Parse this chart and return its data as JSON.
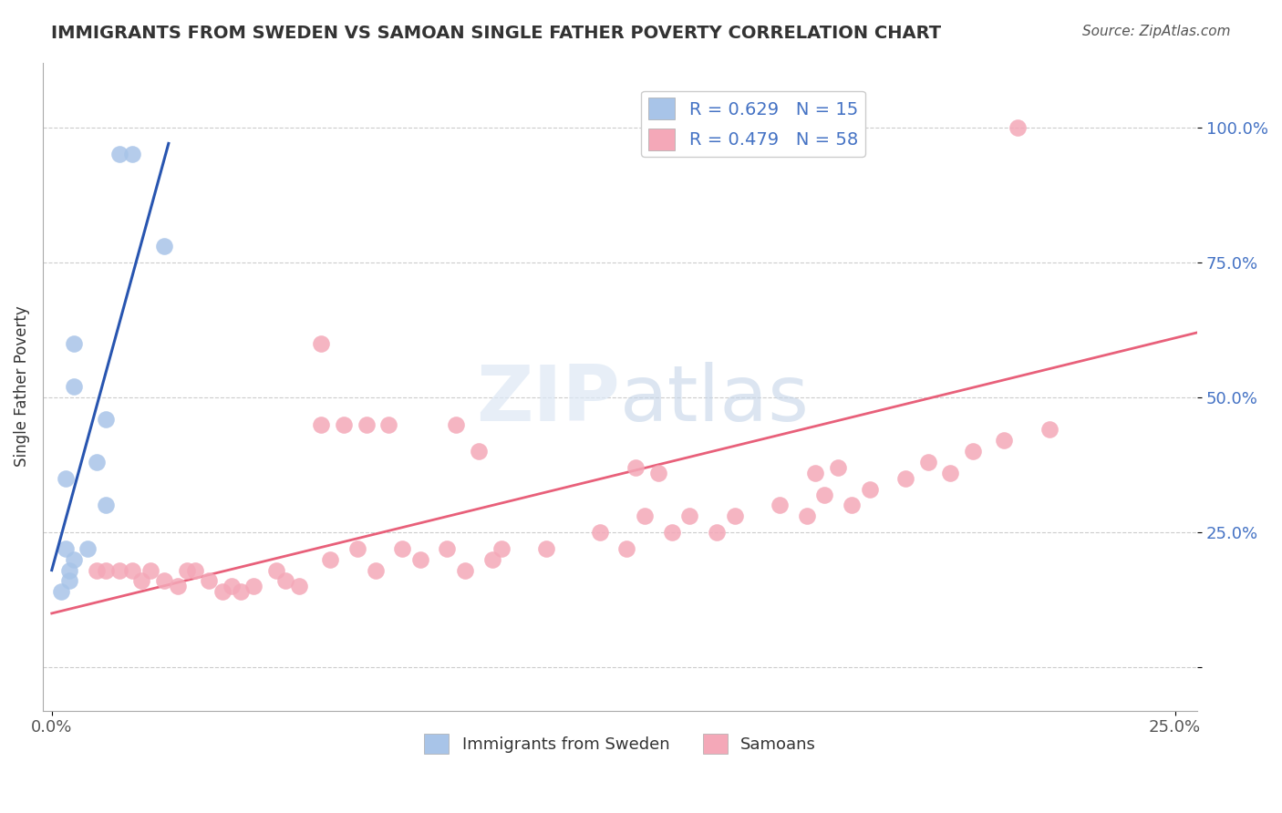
{
  "title": "IMMIGRANTS FROM SWEDEN VS SAMOAN SINGLE FATHER POVERTY CORRELATION CHART",
  "source": "Source: ZipAtlas.com",
  "ylabel": "Single Father Poverty",
  "legend_R_blue": "R = 0.629",
  "legend_N_blue": "N = 15",
  "legend_R_pink": "R = 0.479",
  "legend_N_pink": "N = 58",
  "legend_label_blue": "Immigrants from Sweden",
  "legend_label_pink": "Samoans",
  "blue_color": "#a8c4e8",
  "pink_color": "#f4a8b8",
  "blue_line_color": "#2855b0",
  "pink_line_color": "#e8607a",
  "title_color": "#333333",
  "tick_color": "#4472c4",
  "xlim": [
    -0.002,
    0.255
  ],
  "ylim": [
    -0.08,
    1.12
  ],
  "blue_line_x": [
    0.0,
    0.026
  ],
  "blue_line_y": [
    0.18,
    0.97
  ],
  "pink_line_x": [
    0.0,
    0.255
  ],
  "pink_line_y": [
    0.1,
    0.62
  ],
  "sweden_x": [
    0.015,
    0.018,
    0.025,
    0.005,
    0.005,
    0.012,
    0.01,
    0.012,
    0.003,
    0.008,
    0.003,
    0.005,
    0.004,
    0.004,
    0.002
  ],
  "sweden_y": [
    0.95,
    0.95,
    0.78,
    0.6,
    0.52,
    0.46,
    0.38,
    0.3,
    0.35,
    0.22,
    0.22,
    0.2,
    0.18,
    0.16,
    0.14
  ],
  "samoan_x": [
    0.215,
    0.06,
    0.065,
    0.07,
    0.075,
    0.09,
    0.095,
    0.13,
    0.135,
    0.17,
    0.175,
    0.06,
    0.01,
    0.012,
    0.015,
    0.018,
    0.02,
    0.022,
    0.025,
    0.028,
    0.03,
    0.032,
    0.035,
    0.038,
    0.04,
    0.042,
    0.045,
    0.05,
    0.052,
    0.055,
    0.062,
    0.068,
    0.072,
    0.078,
    0.082,
    0.088,
    0.092,
    0.098,
    0.1,
    0.11,
    0.122,
    0.128,
    0.132,
    0.138,
    0.142,
    0.148,
    0.152,
    0.162,
    0.168,
    0.172,
    0.178,
    0.182,
    0.19,
    0.195,
    0.2,
    0.205,
    0.212,
    0.222
  ],
  "samoan_y": [
    1.0,
    0.45,
    0.45,
    0.45,
    0.45,
    0.45,
    0.4,
    0.37,
    0.36,
    0.36,
    0.37,
    0.6,
    0.18,
    0.18,
    0.18,
    0.18,
    0.16,
    0.18,
    0.16,
    0.15,
    0.18,
    0.18,
    0.16,
    0.14,
    0.15,
    0.14,
    0.15,
    0.18,
    0.16,
    0.15,
    0.2,
    0.22,
    0.18,
    0.22,
    0.2,
    0.22,
    0.18,
    0.2,
    0.22,
    0.22,
    0.25,
    0.22,
    0.28,
    0.25,
    0.28,
    0.25,
    0.28,
    0.3,
    0.28,
    0.32,
    0.3,
    0.33,
    0.35,
    0.38,
    0.36,
    0.4,
    0.42,
    0.44
  ],
  "watermark_zip": "ZIP",
  "watermark_atlas": "atlas"
}
